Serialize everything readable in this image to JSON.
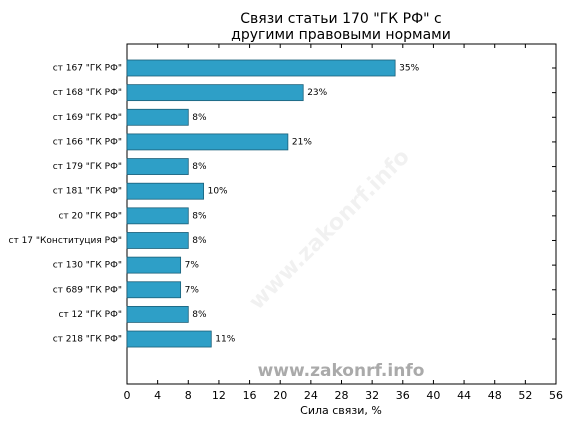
{
  "chart_data": {
    "type": "barh",
    "title": [
      "Связи статьи 170 \"ГК РФ\" с",
      "другими правовыми нормами"
    ],
    "xlabel": "Сила связи, %",
    "watermark": "www.zakonrf.info",
    "categories": [
      "ст 167 \"ГК РФ\"",
      "ст 168 \"ГК РФ\"",
      "ст 169 \"ГК РФ\"",
      "ст 166 \"ГК РФ\"",
      "ст 179 \"ГК РФ\"",
      "ст 181 \"ГК РФ\"",
      "ст 20 \"ГК РФ\"",
      "ст 17 \"Конституция РФ\"",
      "ст 130 \"ГК РФ\"",
      "ст 689 \"ГК РФ\"",
      "ст 12 \"ГК РФ\"",
      "ст 218 \"ГК РФ\""
    ],
    "values": [
      35,
      23,
      8,
      21,
      8,
      10,
      8,
      8,
      7,
      7,
      8,
      11
    ],
    "value_labels": [
      "35%",
      "23%",
      "8%",
      "21%",
      "8%",
      "10%",
      "8%",
      "8%",
      "7%",
      "7%",
      "8%",
      "11%"
    ],
    "color": "#2e9fc7",
    "edgecolor": "#1b5f78",
    "xlim": [
      0,
      56
    ],
    "xticks": [
      0,
      4,
      8,
      12,
      16,
      20,
      24,
      28,
      32,
      36,
      40,
      44,
      48,
      52,
      56
    ],
    "grid": false
  }
}
